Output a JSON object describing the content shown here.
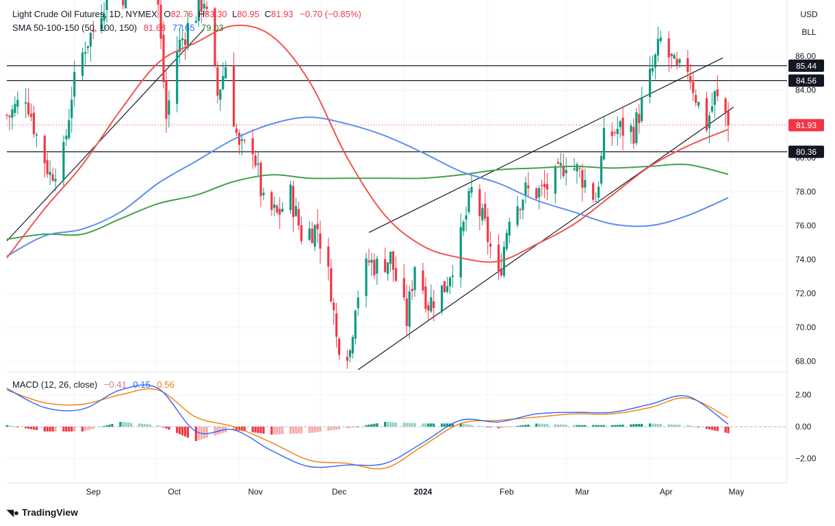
{
  "header": {
    "symbol": "Light Crude Oil Futures, 1D, NYMEX",
    "o_label": "O",
    "o_value": "82.76",
    "h_label": "H",
    "h_value": "83.30",
    "l_label": "L",
    "l_value": "80.95",
    "c_label": "C",
    "c_value": "81.93",
    "change": "−0.70 (−0.85%)",
    "sma_label": "SMA 50-100-150 (50, 100, 150)",
    "sma50_value": "81.68",
    "sma100_value": "77.65",
    "sma150_value": "79.03"
  },
  "scale_buttons": {
    "currency": "USD",
    "unit": "BLL"
  },
  "macd": {
    "label": "MACD (12, 26, close)",
    "hist_value": "−0.41",
    "macd_value": "0.15",
    "signal_value": "0.56"
  },
  "brand": "TradingView",
  "colors": {
    "up": "#089981",
    "down": "#f23645",
    "up_light": "#8fd0c3",
    "down_light": "#f7a9a7",
    "sma50": "#f2524f",
    "sma100": "#5b8def",
    "sma150": "#43a047",
    "macd_line": "#2962ff",
    "signal_line": "#f57c00"
  },
  "chart_data": {
    "type": "candlestick",
    "title": "Light Crude Oil Futures, 1D, NYMEX",
    "price_axis": {
      "ticks": [
        "86.00",
        "84.00",
        "82.00",
        "80.00",
        "78.00",
        "76.00",
        "74.00",
        "72.00",
        "70.00",
        "68.00"
      ],
      "range": [
        67.5,
        88.5
      ]
    },
    "time_axis": {
      "labels": [
        "Sep",
        "Oct",
        "Nov",
        "Dec",
        "2024",
        "Feb",
        "Mar",
        "Apr",
        "May"
      ]
    },
    "price_labels": [
      {
        "value": 85.44,
        "text": "85.44",
        "style": "dark"
      },
      {
        "value": 84.56,
        "text": "84.56",
        "style": "dark"
      },
      {
        "value": 81.93,
        "text": "81.93",
        "style": "last"
      },
      {
        "value": 80.36,
        "text": "80.36",
        "style": "dark"
      }
    ],
    "horizontal_lines": [
      85.44,
      84.56,
      80.36
    ],
    "last_price": 81.93,
    "close_series": [
      {
        "d": "2023-08-08",
        "v": 82.5
      },
      {
        "d": "2023-08-14",
        "v": 83.8
      },
      {
        "d": "2023-08-18",
        "v": 81.3
      },
      {
        "d": "2023-08-23",
        "v": 79.0
      },
      {
        "d": "2023-08-28",
        "v": 80.2
      },
      {
        "d": "2023-08-31",
        "v": 83.8
      },
      {
        "d": "2023-09-05",
        "v": 86.7
      },
      {
        "d": "2023-09-08",
        "v": 87.5
      },
      {
        "d": "2023-09-14",
        "v": 90.2
      },
      {
        "d": "2023-09-20",
        "v": 89.6
      },
      {
        "d": "2023-09-27",
        "v": 93.7
      },
      {
        "d": "2023-10-02",
        "v": 89.0
      },
      {
        "d": "2023-10-05",
        "v": 82.3
      },
      {
        "d": "2023-10-09",
        "v": 86.4
      },
      {
        "d": "2023-10-13",
        "v": 87.7
      },
      {
        "d": "2023-10-19",
        "v": 89.4
      },
      {
        "d": "2023-10-24",
        "v": 83.7
      },
      {
        "d": "2023-10-27",
        "v": 85.5
      },
      {
        "d": "2023-11-01",
        "v": 80.4
      },
      {
        "d": "2023-11-06",
        "v": 80.8
      },
      {
        "d": "2023-11-10",
        "v": 77.2
      },
      {
        "d": "2023-11-15",
        "v": 76.6
      },
      {
        "d": "2023-11-20",
        "v": 77.8
      },
      {
        "d": "2023-11-24",
        "v": 75.5
      },
      {
        "d": "2023-11-30",
        "v": 75.9
      },
      {
        "d": "2023-12-05",
        "v": 72.3
      },
      {
        "d": "2023-12-07",
        "v": 69.3
      },
      {
        "d": "2023-12-12",
        "v": 68.6
      },
      {
        "d": "2023-12-14",
        "v": 71.6
      },
      {
        "d": "2023-12-19",
        "v": 73.9
      },
      {
        "d": "2023-12-22",
        "v": 73.6
      },
      {
        "d": "2023-12-27",
        "v": 74.1
      },
      {
        "d": "2024-01-02",
        "v": 70.4
      },
      {
        "d": "2024-01-05",
        "v": 73.8
      },
      {
        "d": "2024-01-10",
        "v": 71.4
      },
      {
        "d": "2024-01-16",
        "v": 72.4
      },
      {
        "d": "2024-01-22",
        "v": 75.2
      },
      {
        "d": "2024-01-26",
        "v": 78.0
      },
      {
        "d": "2024-01-31",
        "v": 75.9
      },
      {
        "d": "2024-02-05",
        "v": 72.8
      },
      {
        "d": "2024-02-09",
        "v": 76.8
      },
      {
        "d": "2024-02-15",
        "v": 78.0
      },
      {
        "d": "2024-02-21",
        "v": 78.0
      },
      {
        "d": "2024-02-27",
        "v": 78.9
      },
      {
        "d": "2024-03-01",
        "v": 79.9
      },
      {
        "d": "2024-03-06",
        "v": 79.1
      },
      {
        "d": "2024-03-12",
        "v": 77.6
      },
      {
        "d": "2024-03-15",
        "v": 81.0
      },
      {
        "d": "2024-03-20",
        "v": 81.7
      },
      {
        "d": "2024-03-26",
        "v": 81.6
      },
      {
        "d": "2024-04-02",
        "v": 85.2
      },
      {
        "d": "2024-04-05",
        "v": 86.9
      },
      {
        "d": "2024-04-11",
        "v": 85.0
      },
      {
        "d": "2024-04-15",
        "v": 85.4
      },
      {
        "d": "2024-04-19",
        "v": 83.1
      },
      {
        "d": "2024-04-22",
        "v": 82.0
      },
      {
        "d": "2024-04-25",
        "v": 83.6
      },
      {
        "d": "2024-04-29",
        "v": 82.6
      },
      {
        "d": "2024-04-30",
        "v": 81.9
      }
    ],
    "sma50": [
      {
        "d": "2023-08-07",
        "v": 74.1
      },
      {
        "d": "2023-08-21",
        "v": 77.0
      },
      {
        "d": "2023-09-04",
        "v": 79.6
      },
      {
        "d": "2023-09-18",
        "v": 82.8
      },
      {
        "d": "2023-10-02",
        "v": 85.6
      },
      {
        "d": "2023-10-16",
        "v": 86.8
      },
      {
        "d": "2023-10-30",
        "v": 87.8
      },
      {
        "d": "2023-11-13",
        "v": 87.2
      },
      {
        "d": "2023-11-27",
        "v": 84.5
      },
      {
        "d": "2023-12-11",
        "v": 80.0
      },
      {
        "d": "2023-12-25",
        "v": 76.6
      },
      {
        "d": "2024-01-08",
        "v": 74.8
      },
      {
        "d": "2024-01-22",
        "v": 74.1
      },
      {
        "d": "2024-02-05",
        "v": 73.9
      },
      {
        "d": "2024-02-19",
        "v": 74.9
      },
      {
        "d": "2024-03-04",
        "v": 76.1
      },
      {
        "d": "2024-03-18",
        "v": 77.8
      },
      {
        "d": "2024-04-01",
        "v": 79.5
      },
      {
        "d": "2024-04-15",
        "v": 80.7
      },
      {
        "d": "2024-04-30",
        "v": 81.68
      }
    ],
    "sma100": [
      {
        "d": "2023-08-07",
        "v": 74.2
      },
      {
        "d": "2023-08-21",
        "v": 75.4
      },
      {
        "d": "2023-09-04",
        "v": 75.8
      },
      {
        "d": "2023-09-18",
        "v": 76.8
      },
      {
        "d": "2023-10-02",
        "v": 78.5
      },
      {
        "d": "2023-10-16",
        "v": 79.8
      },
      {
        "d": "2023-10-30",
        "v": 81.1
      },
      {
        "d": "2023-11-13",
        "v": 82.0
      },
      {
        "d": "2023-11-27",
        "v": 82.4
      },
      {
        "d": "2023-12-11",
        "v": 82.0
      },
      {
        "d": "2023-12-25",
        "v": 81.3
      },
      {
        "d": "2024-01-08",
        "v": 80.3
      },
      {
        "d": "2024-01-22",
        "v": 79.2
      },
      {
        "d": "2024-02-05",
        "v": 78.5
      },
      {
        "d": "2024-02-19",
        "v": 77.5
      },
      {
        "d": "2024-03-04",
        "v": 76.8
      },
      {
        "d": "2024-03-18",
        "v": 76.1
      },
      {
        "d": "2024-04-01",
        "v": 76.0
      },
      {
        "d": "2024-04-15",
        "v": 76.6
      },
      {
        "d": "2024-04-30",
        "v": 77.65
      }
    ],
    "sma150": [
      {
        "d": "2023-08-07",
        "v": 75.2
      },
      {
        "d": "2023-08-21",
        "v": 75.5
      },
      {
        "d": "2023-09-04",
        "v": 75.5
      },
      {
        "d": "2023-09-18",
        "v": 76.4
      },
      {
        "d": "2023-10-02",
        "v": 77.3
      },
      {
        "d": "2023-10-16",
        "v": 77.8
      },
      {
        "d": "2023-10-30",
        "v": 78.6
      },
      {
        "d": "2023-11-13",
        "v": 79.0
      },
      {
        "d": "2023-11-27",
        "v": 78.8
      },
      {
        "d": "2023-12-11",
        "v": 78.8
      },
      {
        "d": "2023-12-25",
        "v": 78.8
      },
      {
        "d": "2024-01-08",
        "v": 78.8
      },
      {
        "d": "2024-01-22",
        "v": 79.0
      },
      {
        "d": "2024-02-05",
        "v": 79.3
      },
      {
        "d": "2024-02-19",
        "v": 79.4
      },
      {
        "d": "2024-03-04",
        "v": 79.5
      },
      {
        "d": "2024-03-18",
        "v": 79.4
      },
      {
        "d": "2024-04-01",
        "v": 79.5
      },
      {
        "d": "2024-04-15",
        "v": 79.6
      },
      {
        "d": "2024-04-30",
        "v": 79.03
      }
    ],
    "trendlines": [
      {
        "from": {
          "d": "2023-08-07",
          "v": 75.1
        },
        "to": {
          "d": "2023-10-19",
          "v": 87.6
        }
      },
      {
        "from": {
          "d": "2023-12-19",
          "v": 75.6
        },
        "to": {
          "d": "2024-04-28",
          "v": 85.9
        }
      },
      {
        "from": {
          "d": "2023-12-15",
          "v": 67.5
        },
        "to": {
          "d": "2024-05-02",
          "v": 83.0
        }
      }
    ],
    "macd": {
      "ticks": [
        "2.00",
        "0.00",
        "−2.00"
      ],
      "range": [
        -3.3,
        3.0
      ],
      "macd_line": [
        {
          "d": "2023-08-07",
          "v": 2.4
        },
        {
          "d": "2023-08-21",
          "v": 1.2
        },
        {
          "d": "2023-09-04",
          "v": 1.1
        },
        {
          "d": "2023-09-18",
          "v": 2.3
        },
        {
          "d": "2023-10-02",
          "v": 2.4
        },
        {
          "d": "2023-10-16",
          "v": -0.3
        },
        {
          "d": "2023-10-30",
          "v": -0.2
        },
        {
          "d": "2023-11-13",
          "v": -1.5
        },
        {
          "d": "2023-11-27",
          "v": -2.5
        },
        {
          "d": "2023-12-11",
          "v": -2.4
        },
        {
          "d": "2023-12-25",
          "v": -2.3
        },
        {
          "d": "2024-01-08",
          "v": -1.0
        },
        {
          "d": "2024-01-22",
          "v": 0.4
        },
        {
          "d": "2024-02-05",
          "v": 0.3
        },
        {
          "d": "2024-02-19",
          "v": 0.8
        },
        {
          "d": "2024-03-04",
          "v": 0.9
        },
        {
          "d": "2024-03-18",
          "v": 0.9
        },
        {
          "d": "2024-04-01",
          "v": 1.4
        },
        {
          "d": "2024-04-15",
          "v": 1.9
        },
        {
          "d": "2024-04-30",
          "v": 0.15
        }
      ],
      "signal_line": [
        {
          "d": "2023-08-07",
          "v": 2.3
        },
        {
          "d": "2023-08-21",
          "v": 1.5
        },
        {
          "d": "2023-09-04",
          "v": 1.4
        },
        {
          "d": "2023-09-18",
          "v": 2.0
        },
        {
          "d": "2023-10-02",
          "v": 2.3
        },
        {
          "d": "2023-10-16",
          "v": 0.6
        },
        {
          "d": "2023-10-30",
          "v": 0.0
        },
        {
          "d": "2023-11-13",
          "v": -1.0
        },
        {
          "d": "2023-11-27",
          "v": -2.1
        },
        {
          "d": "2023-12-11",
          "v": -2.3
        },
        {
          "d": "2023-12-25",
          "v": -2.6
        },
        {
          "d": "2024-01-08",
          "v": -1.2
        },
        {
          "d": "2024-01-22",
          "v": 0.2
        },
        {
          "d": "2024-02-05",
          "v": 0.4
        },
        {
          "d": "2024-02-19",
          "v": 0.6
        },
        {
          "d": "2024-03-04",
          "v": 0.8
        },
        {
          "d": "2024-03-18",
          "v": 0.8
        },
        {
          "d": "2024-04-01",
          "v": 1.2
        },
        {
          "d": "2024-04-15",
          "v": 1.8
        },
        {
          "d": "2024-04-30",
          "v": 0.56
        }
      ]
    }
  }
}
